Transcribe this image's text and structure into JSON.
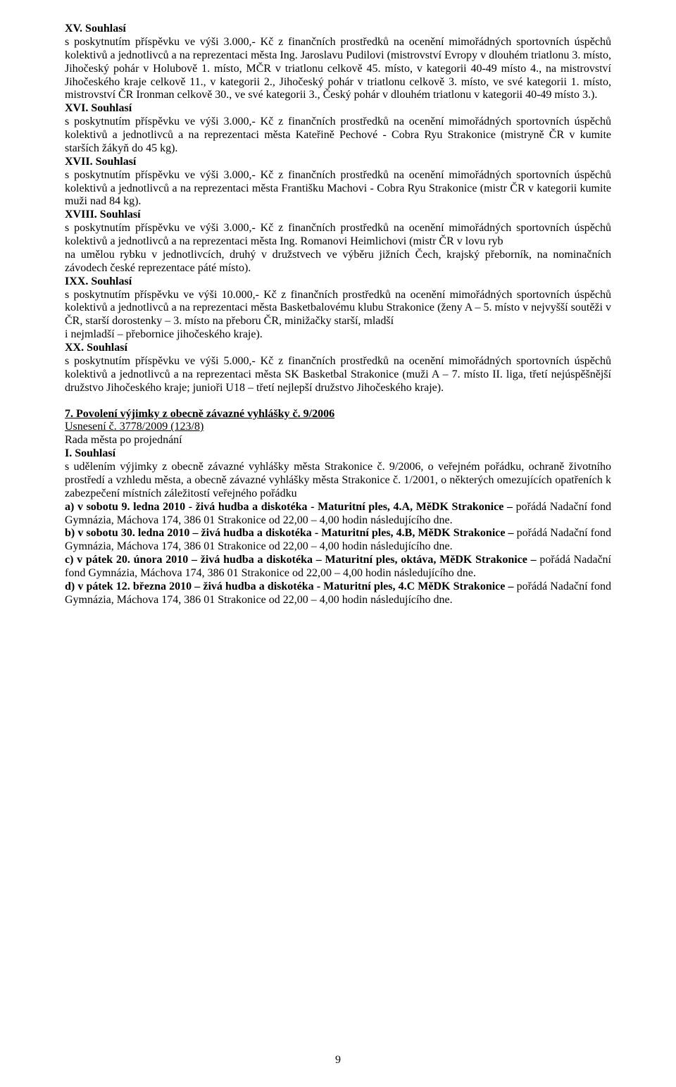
{
  "sec15": {
    "heading": "XV. Souhlasí",
    "body": "s poskytnutím příspěvku ve výši 3.000,- Kč z finančních prostředků na ocenění mimořádných sportovních úspěchů kolektivů a jednotlivců a na reprezentaci města Ing. Jaroslavu Pudilovi (mistrovství Evropy v dlouhém triatlonu 3. místo, Jihočeský pohár v Holubově 1. místo, MČR v triatlonu celkově 45. místo, v kategorii 40-49 místo 4., na mistrovství Jihočeského kraje celkově 11., v kategorii 2., Jihočeský pohár v triatlonu celkově 3. místo, ve své kategorii 1. místo, mistrovství ČR Ironman celkově 30., ve své kategorii 3., Český pohár v dlouhém triatlonu v kategorii 40-49 místo 3.)."
  },
  "sec16": {
    "heading": "XVI. Souhlasí",
    "body": "s poskytnutím příspěvku ve výši 3.000,- Kč z finančních prostředků na ocenění mimořádných sportovních úspěchů kolektivů a jednotlivců a na reprezentaci města Kateřině Pechové - Cobra Ryu Strakonice (mistryně ČR v kumite starších žákyň do 45 kg)."
  },
  "sec17": {
    "heading": "XVII. Souhlasí",
    "body": "s poskytnutím příspěvku ve výši 3.000,- Kč z finančních prostředků na ocenění mimořádných sportovních úspěchů kolektivů a jednotlivců a na reprezentaci města Františku Machovi - Cobra Ryu Strakonice (mistr ČR v kategorii kumite muži nad 84 kg)."
  },
  "sec18": {
    "heading": "XVIII. Souhlasí",
    "body": "s poskytnutím příspěvku ve výši 3.000,- Kč z finančních prostředků na ocenění mimořádných sportovních úspěchů kolektivů a jednotlivců a na reprezentaci města Ing. Romanovi Heimlichovi (mistr ČR v lovu ryb",
    "body2": "na umělou rybku v jednotlivcích, druhý v družstvech ve výběru jižních Čech, krajský přeborník, na nominačních závodech české reprezentace páté místo)."
  },
  "sec19": {
    "heading": "IXX. Souhlasí",
    "body": "s poskytnutím příspěvku ve výši 10.000,- Kč z finančních prostředků na ocenění mimořádných sportovních úspěchů kolektivů a jednotlivců a na reprezentaci města Basketbalovému klubu Strakonice (ženy A – 5. místo v nejvyšší soutěži v ČR, starší dorostenky – 3. místo na přeboru ČR, minižačky starší, mladší",
    "body2": "i nejmladší – přebornice jihočeského kraje)."
  },
  "sec20": {
    "heading": "XX. Souhlasí",
    "body": "s poskytnutím příspěvku ve výši 5.000,- Kč z finančních prostředků na ocenění mimořádných sportovních úspěchů kolektivů a jednotlivců a na reprezentaci města SK Basketbal Strakonice (muži A – 7. místo II. liga, třetí nejúspěšnější družstvo Jihočeského kraje; junioři U18 – třetí nejlepší družstvo Jihočeského kraje)."
  },
  "sec7": {
    "title": "7. Povolení výjimky z obecně závazné vyhlášky č. 9/2006",
    "res": "Usnesení č. 3778/2009 (123/8)",
    "line1": "Rada města po projednání",
    "heading": "I. Souhlasí",
    "intro": "s udělením výjimky z obecně závazné vyhlášky města Strakonice č. 9/2006, o veřejném pořádku, ochraně životního prostředí a vzhledu města, a obecně závazné vyhlášky města Strakonice č. 1/2001, o některých omezujících opatřeních k zabezpečení místních záležitostí veřejného pořádku",
    "a_lead": "a) v sobotu 9. ledna 2010 - živá hudba a diskotéka -  Maturitní ples, 4.A, MěDK Strakonice – ",
    "a_body": "pořádá Nadační fond Gymnázia, Máchova 174, 386 01 Strakonice  od 22,00 – 4,00 hodin následujícího dne.",
    "b_lead": "b) v sobotu 30. ledna 2010 – živá hudba a diskotéka - Maturitní ples, 4.B, MěDK Strakonice – ",
    "b_body": "pořádá Nadační fond Gymnázia, Máchova 174, 386 01 Strakonice  od 22,00 – 4,00 hodin následujícího dne.",
    "c_lead": "c) v pátek 20. února 2010 – živá hudba a diskotéka – Maturitní ples, oktáva, MěDK Strakonice – ",
    "c_body": "pořádá Nadační fond Gymnázia, Máchova 174, 386 01 Strakonice  od 22,00 – 4,00 hodin následujícího dne.",
    "d_lead": "d) v pátek 12. března 2010 – živá hudba a diskotéka - Maturitní ples, 4.C MěDK Strakonice – ",
    "d_body": "pořádá Nadační fond Gymnázia, Máchova 174, 386 01 Strakonice  od 22,00 – 4,00 hodin následujícího dne."
  },
  "pagenum": "9"
}
